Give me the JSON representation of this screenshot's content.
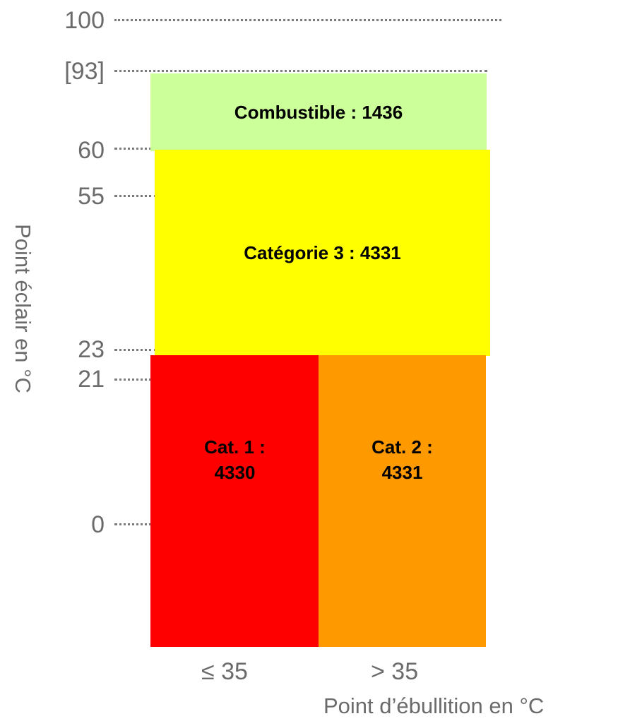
{
  "y_axis": {
    "label": "Point éclair en °C",
    "ticks": [
      "100",
      "[93]",
      "60",
      "55",
      "23",
      "21",
      "0"
    ]
  },
  "x_axis": {
    "label": "Point d’ébullition en °C",
    "ticks": [
      "≤ 35",
      "> 35"
    ]
  },
  "regions": {
    "combustible": "Combustible : 1436",
    "cat3": "Catégorie 3 : 4331",
    "cat1_line1": "Cat. 1 :",
    "cat1_line2": "4330",
    "cat2_line1": "Cat. 2 :",
    "cat2_line2": "4331"
  },
  "colors": {
    "combustible": "#ccff99",
    "cat3": "#ffff00",
    "cat1": "#ff0000",
    "cat2": "#ff9900"
  }
}
